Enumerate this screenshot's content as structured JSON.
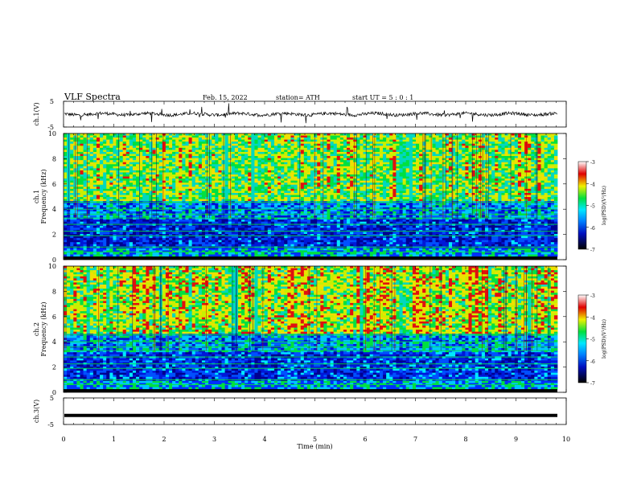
{
  "header": {
    "title": "VLF  Spectra",
    "date": "Feb. 15, 2022",
    "station": "station= ATH",
    "start_ut": "start  UT  =   5  : 0  : 1"
  },
  "colorbar_labels": {
    "units": "log(PSD)(V²/Hz)",
    "ticks": [
      "-3",
      "-4",
      "-5",
      "-6",
      "-7"
    ]
  },
  "chart_data": [
    {
      "type": "line",
      "panel": "ch1-waveform",
      "ylabel": "ch.1(V)",
      "ylim": [
        -5,
        5
      ],
      "yticks": [
        "5",
        "-5"
      ],
      "xlim": [
        0,
        10
      ],
      "baseline_level": 0
    },
    {
      "type": "heatmap",
      "panel": "ch1-spectrogram",
      "ylabel": "ch.1\nFrequency (kHz)",
      "ylim": [
        0,
        10
      ],
      "yticks": [
        "0",
        "2",
        "4",
        "6",
        "8",
        "10"
      ],
      "xlim": [
        0,
        10
      ],
      "colorbar": {
        "label": "log(PSD)(V²/Hz)",
        "range": [
          -7,
          -3
        ],
        "ticks": [
          "-3",
          "-4",
          "-5",
          "-6",
          "-7"
        ]
      }
    },
    {
      "type": "heatmap",
      "panel": "ch2-spectrogram",
      "ylabel": "ch.2\nFrequency (kHz)",
      "ylim": [
        0,
        10
      ],
      "yticks": [
        "0",
        "2",
        "4",
        "6",
        "8",
        "10"
      ],
      "xlim": [
        0,
        10
      ],
      "colorbar": {
        "label": "log(PSD)(V²/Hz)",
        "range": [
          -7,
          -3
        ],
        "ticks": [
          "-3",
          "-4",
          "-5",
          "-6",
          "-7"
        ]
      }
    },
    {
      "type": "line",
      "panel": "ch3-waveform",
      "ylabel": "ch.3(V)",
      "ylim": [
        -5,
        5
      ],
      "yticks": [
        "5",
        "-5"
      ],
      "xlim": [
        0,
        10
      ],
      "baseline_level": -1.6,
      "xlabel": "Time  (min)",
      "xticks": [
        "0",
        "1",
        "2",
        "3",
        "4",
        "5",
        "6",
        "7",
        "8",
        "9",
        "10"
      ]
    }
  ],
  "colors": {
    "low": "#000080",
    "blue": "#0030ff",
    "cyan": "#00d8ff",
    "green": "#00e040",
    "yellow": "#f0f000",
    "red": "#e00000"
  }
}
